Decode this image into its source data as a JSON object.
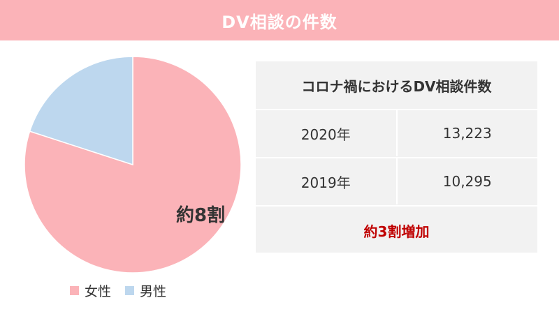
{
  "header": {
    "title": "DV相談の件数"
  },
  "colors": {
    "header_bg": "#fbb3b8",
    "female": "#fbb3b8",
    "male": "#bdd7ee",
    "note": "#c00000",
    "panel_bg": "#f2f2f2"
  },
  "chart_data": {
    "type": "pie",
    "slices": [
      {
        "name": "女性",
        "value": 80
      },
      {
        "name": "男性",
        "value": 20
      }
    ],
    "data_label": "約8割",
    "legend": [
      "女性",
      "男性"
    ],
    "legend_position": "bottom"
  },
  "table": {
    "title": "コロナ禍におけるDV相談件数",
    "rows": [
      {
        "year": "2020年",
        "count": "13,223"
      },
      {
        "year": "2019年",
        "count": "10,295"
      }
    ],
    "note": "約3割増加"
  }
}
